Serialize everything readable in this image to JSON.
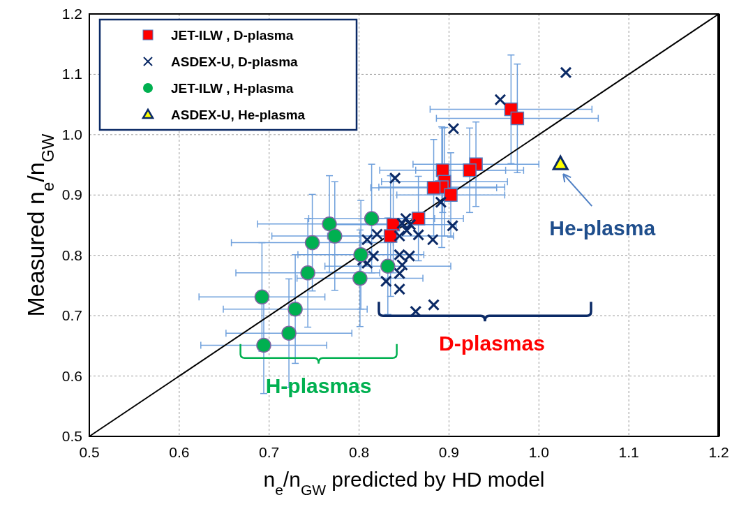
{
  "chart_data": {
    "type": "scatter",
    "xlabel": "n$_{e}$/n$_{GW}$ predicted by HD model",
    "ylabel": "Measured n$_{e}$/n$_{GW}$",
    "xlim": [
      0.5,
      1.2
    ],
    "ylim": [
      0.5,
      1.2
    ],
    "xticks": [
      0.5,
      0.6,
      0.7,
      0.8,
      0.9,
      {
        "value": 1,
        "label": "1.0"
      },
      1.1,
      1.2
    ],
    "yticks": [
      0.5,
      0.6,
      0.7,
      0.8,
      0.9,
      {
        "value": 1,
        "label": "1.0"
      },
      1.1,
      1.2
    ],
    "grid": true,
    "legend": "top left",
    "series": [
      {
        "name": "JET-ILW  , D-plasma",
        "color": "#ff0000",
        "marker": "square",
        "x": [
          0.969,
          0.976,
          0.93,
          0.923,
          0.893,
          0.895,
          0.892,
          0.883,
          0.902,
          0.866,
          0.838,
          0.835
        ],
        "values": [
          1.042,
          1.027,
          0.951,
          0.941,
          0.941,
          0.922,
          0.913,
          0.912,
          0.9,
          0.861,
          0.851,
          0.832
        ],
        "xerrors": [
          0.09,
          0.09,
          0.07,
          0.06,
          0.07,
          0.07,
          0.07,
          0.07,
          0.06,
          0.05,
          0.07,
          0.07
        ],
        "errors": [
          0.09,
          0.09,
          0.07,
          0.07,
          0.07,
          0.09,
          0.1,
          0.08,
          0.07,
          0.07,
          0.08,
          0.1
        ]
      },
      {
        "name": "ASDEX-U, D-plasma",
        "color": "#0b2a66",
        "marker": "cross",
        "x": [
          1.03,
          0.957,
          0.905,
          0.84,
          0.891,
          0.904,
          0.882,
          0.866,
          0.852,
          0.857,
          0.848,
          0.845,
          0.82,
          0.809,
          0.816,
          0.809,
          0.845,
          0.856,
          0.848,
          0.845,
          0.83,
          0.845,
          0.883,
          0.863,
          0.804,
          0.853
        ],
        "values": [
          1.103,
          1.058,
          1.01,
          0.928,
          0.888,
          0.849,
          0.826,
          0.834,
          0.861,
          0.851,
          0.853,
          0.832,
          0.835,
          0.826,
          0.799,
          0.787,
          0.801,
          0.799,
          0.784,
          0.77,
          0.757,
          0.744,
          0.718,
          0.707,
          0.792,
          0.841
        ]
      },
      {
        "name": "JET-ILW  , H-plasma",
        "color": "#00b050",
        "marker": "circle",
        "x": [
          0.814,
          0.767,
          0.773,
          0.748,
          0.802,
          0.832,
          0.743,
          0.801,
          0.692,
          0.729,
          0.722,
          0.694
        ],
        "values": [
          0.861,
          0.852,
          0.832,
          0.821,
          0.801,
          0.782,
          0.771,
          0.762,
          0.731,
          0.711,
          0.671,
          0.651
        ],
        "xerrors": [
          0.07,
          0.08,
          0.07,
          0.09,
          0.07,
          0.07,
          0.08,
          0.07,
          0.07,
          0.08,
          0.07,
          0.07
        ],
        "errors": [
          0.09,
          0.08,
          0.09,
          0.08,
          0.09,
          0.08,
          0.09,
          0.08,
          0.09,
          0.09,
          0.09,
          0.08
        ]
      },
      {
        "name": "ASDEX-U, He-plasma",
        "color": "#ffff00",
        "marker": "triangle",
        "x": [
          1.024
        ],
        "values": [
          0.951
        ]
      },
      {
        "type": "line",
        "color": "#000000",
        "marker": "none",
        "x": [
          0.5,
          1.2
        ],
        "values": [
          0.5,
          1.2
        ]
      }
    ],
    "annotations": [
      "H-plasmas",
      "D-plasmas",
      {
        "text": "He-plasma",
        "x": 1.024,
        "y": 0.951
      }
    ]
  }
}
